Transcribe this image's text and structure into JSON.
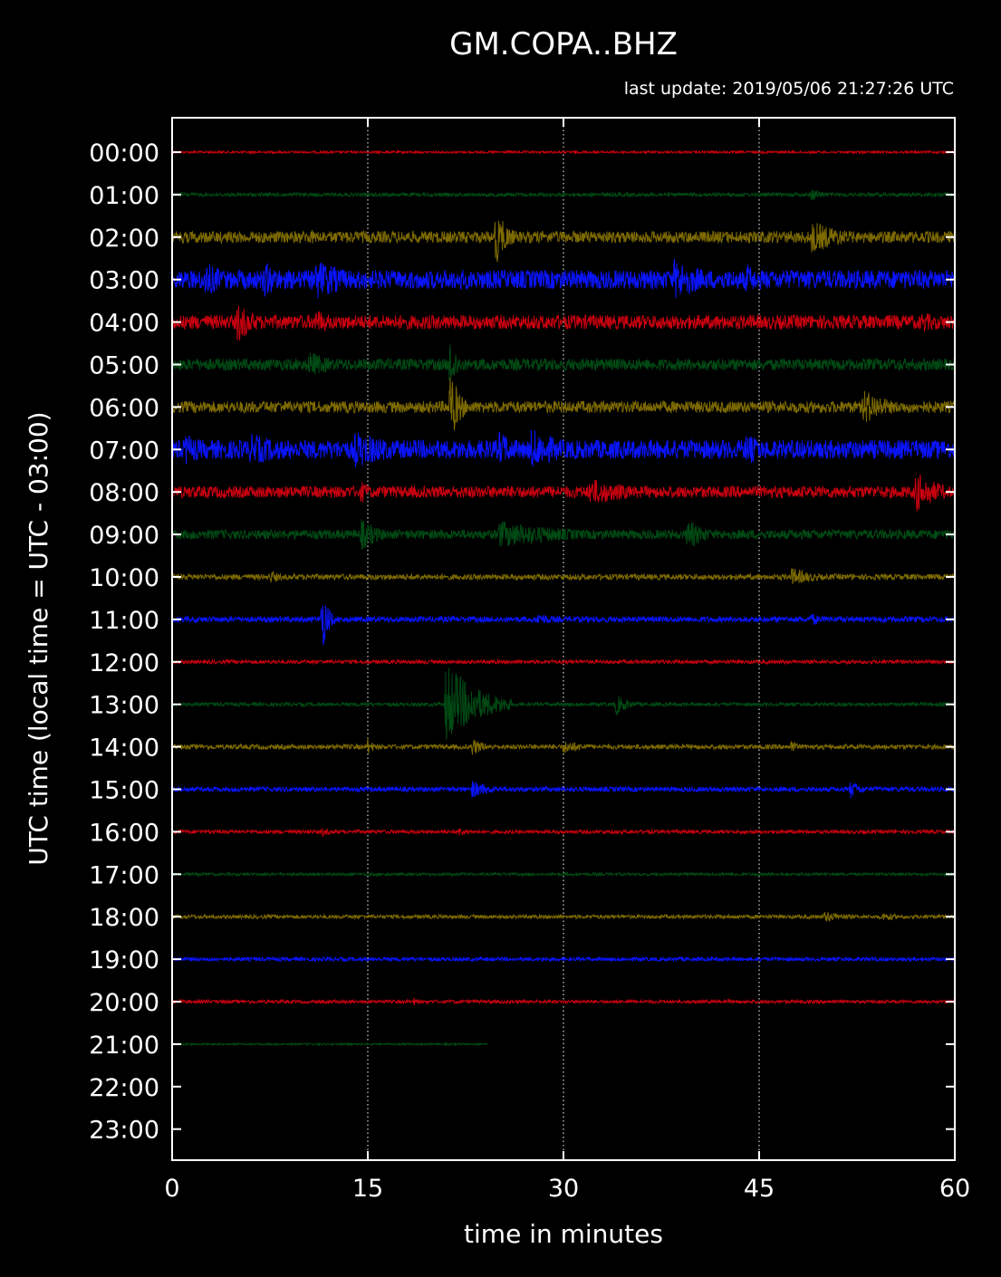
{
  "chart_data": {
    "type": "line",
    "title": "GM.COPA..BHZ",
    "subtitle": "last update: 2019/05/06 21:27:26 UTC",
    "xlabel": "time in minutes",
    "ylabel": "UTC time (local time = UTC - 03:00)",
    "xlim": [
      0,
      60
    ],
    "x_ticks": [
      0,
      15,
      30,
      45,
      60
    ],
    "x_tick_labels": [
      "0",
      "15",
      "30",
      "45",
      "60"
    ],
    "vertical_gridlines": [
      15,
      30,
      45
    ],
    "y_tick_labels": [
      "00:00",
      "01:00",
      "02:00",
      "03:00",
      "04:00",
      "05:00",
      "06:00",
      "07:00",
      "08:00",
      "09:00",
      "10:00",
      "11:00",
      "12:00",
      "13:00",
      "14:00",
      "15:00",
      "16:00",
      "17:00",
      "18:00",
      "19:00",
      "20:00",
      "21:00",
      "22:00",
      "23:00"
    ],
    "colors": [
      "#c8000f",
      "#004a14",
      "#7d6a00",
      "#0a14ff"
    ],
    "series": [
      {
        "hour": "00:00",
        "color": "#c8000f",
        "amplitude": 0.05,
        "end_minute": 60,
        "events": []
      },
      {
        "hour": "01:00",
        "color": "#004a14",
        "amplitude": 0.08,
        "end_minute": 60,
        "events": [
          {
            "t": 49,
            "amp": 0.3,
            "dur": 1
          }
        ]
      },
      {
        "hour": "02:00",
        "color": "#7d6a00",
        "amplitude": 0.25,
        "end_minute": 60,
        "events": [
          {
            "t": 10.5,
            "amp": 0.35,
            "dur": 1.5
          },
          {
            "t": 24.8,
            "amp": 1.2,
            "dur": 1
          },
          {
            "t": 49,
            "amp": 0.7,
            "dur": 3
          }
        ]
      },
      {
        "hour": "03:00",
        "color": "#0a14ff",
        "amplitude": 0.4,
        "end_minute": 60,
        "events": [
          {
            "t": 2.5,
            "amp": 0.8,
            "dur": 2
          },
          {
            "t": 7,
            "amp": 0.8,
            "dur": 2
          },
          {
            "t": 11,
            "amp": 0.9,
            "dur": 3
          },
          {
            "t": 22,
            "amp": 0.5,
            "dur": 2
          },
          {
            "t": 38.5,
            "amp": 0.9,
            "dur": 3
          },
          {
            "t": 44,
            "amp": 0.7,
            "dur": 1.5
          }
        ]
      },
      {
        "hour": "04:00",
        "color": "#c8000f",
        "amplitude": 0.3,
        "end_minute": 60,
        "events": [
          {
            "t": 5,
            "amp": 0.9,
            "dur": 1.5
          },
          {
            "t": 11,
            "amp": 0.6,
            "dur": 1.5
          },
          {
            "t": 57.5,
            "amp": 0.5,
            "dur": 1.5
          }
        ]
      },
      {
        "hour": "05:00",
        "color": "#004a14",
        "amplitude": 0.25,
        "end_minute": 60,
        "events": [
          {
            "t": 10.5,
            "amp": 0.6,
            "dur": 2
          },
          {
            "t": 21.3,
            "amp": 1.2,
            "dur": 0.6
          }
        ]
      },
      {
        "hour": "06:00",
        "color": "#7d6a00",
        "amplitude": 0.25,
        "end_minute": 60,
        "events": [
          {
            "t": 21.3,
            "amp": 1.6,
            "dur": 0.8
          },
          {
            "t": 25,
            "amp": 0.3,
            "dur": 1
          },
          {
            "t": 53,
            "amp": 0.8,
            "dur": 2
          }
        ]
      },
      {
        "hour": "07:00",
        "color": "#0a14ff",
        "amplitude": 0.4,
        "end_minute": 60,
        "events": [
          {
            "t": 1,
            "amp": 0.7,
            "dur": 2
          },
          {
            "t": 6,
            "amp": 0.7,
            "dur": 4
          },
          {
            "t": 14,
            "amp": 0.8,
            "dur": 4
          },
          {
            "t": 25,
            "amp": 0.8,
            "dur": 2
          },
          {
            "t": 27.5,
            "amp": 0.9,
            "dur": 3
          },
          {
            "t": 44,
            "amp": 0.7,
            "dur": 2
          }
        ]
      },
      {
        "hour": "08:00",
        "color": "#c8000f",
        "amplitude": 0.25,
        "end_minute": 60,
        "events": [
          {
            "t": 14.5,
            "amp": 0.5,
            "dur": 1
          },
          {
            "t": 32,
            "amp": 0.6,
            "dur": 4
          },
          {
            "t": 57,
            "amp": 0.9,
            "dur": 2
          }
        ]
      },
      {
        "hour": "09:00",
        "color": "#004a14",
        "amplitude": 0.2,
        "end_minute": 60,
        "events": [
          {
            "t": 14.5,
            "amp": 0.7,
            "dur": 1.5
          },
          {
            "t": 25,
            "amp": 0.6,
            "dur": 6
          },
          {
            "t": 39.5,
            "amp": 0.7,
            "dur": 1.5
          }
        ]
      },
      {
        "hour": "10:00",
        "color": "#7d6a00",
        "amplitude": 0.12,
        "end_minute": 60,
        "events": [
          {
            "t": 7.5,
            "amp": 0.3,
            "dur": 1
          },
          {
            "t": 47.5,
            "amp": 0.4,
            "dur": 2
          }
        ]
      },
      {
        "hour": "11:00",
        "color": "#0a14ff",
        "amplitude": 0.12,
        "end_minute": 60,
        "events": [
          {
            "t": 11.5,
            "amp": 1.4,
            "dur": 0.5
          },
          {
            "t": 28,
            "amp": 0.3,
            "dur": 1.5
          },
          {
            "t": 49,
            "amp": 0.3,
            "dur": 1
          }
        ]
      },
      {
        "hour": "12:00",
        "color": "#c8000f",
        "amplitude": 0.08,
        "end_minute": 60,
        "events": []
      },
      {
        "hour": "13:00",
        "color": "#004a14",
        "amplitude": 0.08,
        "end_minute": 60,
        "events": [
          {
            "t": 21,
            "amp": 1.8,
            "dur": 2.5
          },
          {
            "t": 34,
            "amp": 0.5,
            "dur": 1
          }
        ]
      },
      {
        "hour": "14:00",
        "color": "#7d6a00",
        "amplitude": 0.1,
        "end_minute": 60,
        "events": [
          {
            "t": 15,
            "amp": 0.4,
            "dur": 0.5
          },
          {
            "t": 23,
            "amp": 0.4,
            "dur": 1
          },
          {
            "t": 30,
            "amp": 0.3,
            "dur": 2
          },
          {
            "t": 47.5,
            "amp": 0.4,
            "dur": 0.4
          }
        ]
      },
      {
        "hour": "15:00",
        "color": "#0a14ff",
        "amplitude": 0.1,
        "end_minute": 60,
        "events": [
          {
            "t": 23,
            "amp": 0.4,
            "dur": 1.5
          },
          {
            "t": 52,
            "amp": 0.4,
            "dur": 1
          }
        ]
      },
      {
        "hour": "16:00",
        "color": "#c8000f",
        "amplitude": 0.08,
        "end_minute": 60,
        "events": [
          {
            "t": 11.5,
            "amp": 0.2,
            "dur": 1
          },
          {
            "t": 22,
            "amp": 0.2,
            "dur": 1
          }
        ]
      },
      {
        "hour": "17:00",
        "color": "#004a14",
        "amplitude": 0.06,
        "end_minute": 60,
        "events": []
      },
      {
        "hour": "18:00",
        "color": "#7d6a00",
        "amplitude": 0.08,
        "end_minute": 60,
        "events": [
          {
            "t": 50,
            "amp": 0.25,
            "dur": 2
          },
          {
            "t": 54.5,
            "amp": 0.2,
            "dur": 1.5
          }
        ]
      },
      {
        "hour": "19:00",
        "color": "#0a14ff",
        "amplitude": 0.08,
        "end_minute": 60,
        "events": []
      },
      {
        "hour": "20:00",
        "color": "#c8000f",
        "amplitude": 0.07,
        "end_minute": 60,
        "events": [
          {
            "t": 18.5,
            "amp": 0.2,
            "dur": 0.5
          },
          {
            "t": 42.5,
            "amp": 0.15,
            "dur": 0.5
          }
        ]
      },
      {
        "hour": "21:00",
        "color": "#004a14",
        "amplitude": 0.04,
        "end_minute": 24.2,
        "events": []
      }
    ]
  }
}
